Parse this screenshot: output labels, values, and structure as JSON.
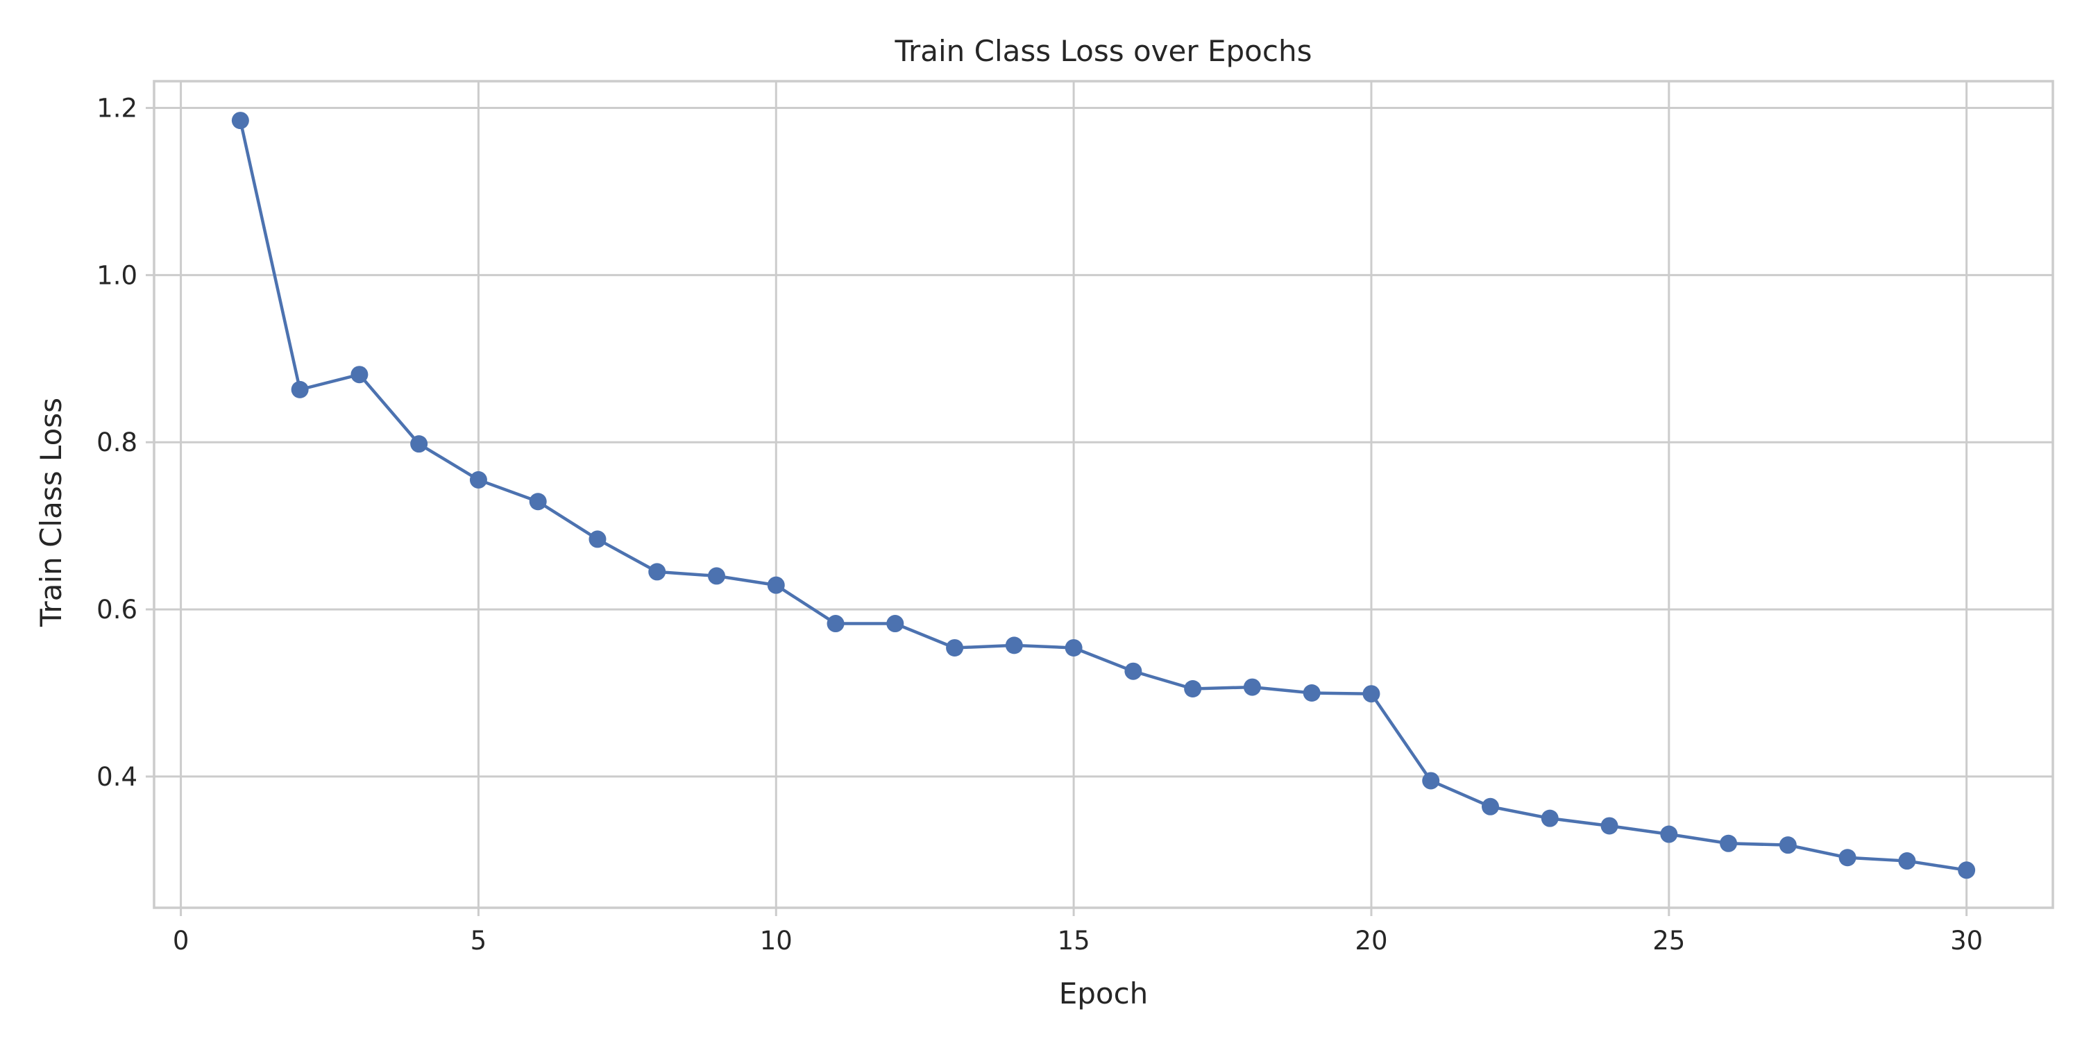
{
  "chart_data": {
    "type": "line",
    "title": "Train Class Loss over Epochs",
    "xlabel": "Epoch",
    "ylabel": "Train Class Loss",
    "xlim": [
      -0.45,
      31.45
    ],
    "ylim": [
      0.243,
      1.232
    ],
    "xticks": [
      0,
      5,
      10,
      15,
      20,
      25,
      30
    ],
    "yticks": [
      0.4,
      0.6,
      0.8,
      1.0,
      1.2
    ],
    "ytick_labels": [
      "0.4",
      "0.6",
      "0.8",
      "1.0",
      "1.2"
    ],
    "grid": true,
    "legend": "none",
    "x": [
      1,
      2,
      3,
      4,
      5,
      6,
      7,
      8,
      9,
      10,
      11,
      12,
      13,
      14,
      15,
      16,
      17,
      18,
      19,
      20,
      21,
      22,
      23,
      24,
      25,
      26,
      27,
      28,
      29,
      30
    ],
    "series": [
      {
        "color": "#4c72b0",
        "marker": "circle",
        "values": [
          1.185,
          0.863,
          0.881,
          0.798,
          0.755,
          0.729,
          0.684,
          0.645,
          0.64,
          0.629,
          0.583,
          0.583,
          0.554,
          0.557,
          0.554,
          0.526,
          0.505,
          0.507,
          0.5,
          0.499,
          0.395,
          0.364,
          0.35,
          0.341,
          0.331,
          0.32,
          0.318,
          0.303,
          0.299,
          0.288
        ]
      }
    ]
  }
}
